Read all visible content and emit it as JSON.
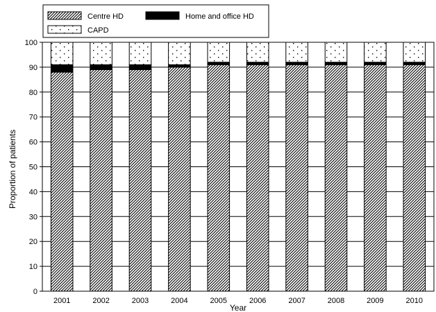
{
  "chart_data": {
    "type": "bar",
    "stacked": true,
    "categories": [
      "2001",
      "2002",
      "2003",
      "2004",
      "2005",
      "2006",
      "2007",
      "2008",
      "2009",
      "2010"
    ],
    "series": [
      {
        "name": "Centre HD",
        "values": [
          88,
          89,
          89,
          90,
          91,
          91,
          91,
          91,
          91,
          91
        ],
        "pattern": "diagonal-hatch"
      },
      {
        "name": "Home and office HD",
        "values": [
          3,
          2,
          2,
          1,
          1,
          1,
          1,
          1,
          1,
          1
        ],
        "pattern": "solid",
        "color": "#000000"
      },
      {
        "name": "CAPD",
        "values": [
          9,
          9,
          9,
          9,
          8,
          8,
          8,
          8,
          8,
          8
        ],
        "pattern": "dots"
      }
    ],
    "title": "",
    "xlabel": "Year",
    "ylabel": "Proportion of patients",
    "ylim": [
      0,
      100
    ],
    "yticks": [
      "0",
      "10",
      "20",
      "30",
      "40",
      "50",
      "60",
      "70",
      "80",
      "90",
      "100"
    ],
    "grid": true,
    "legend_position": "top-left"
  }
}
